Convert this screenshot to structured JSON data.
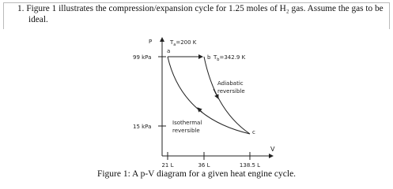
{
  "problem": {
    "number": "1.",
    "text": "Figure 1 illustrates the compression/expansion cycle for 1.25 moles of H₂ gas. Assume the gas to be ideal."
  },
  "figure": {
    "axis_labels": {
      "p": "P",
      "v": "V"
    },
    "y_ticks": [
      "99 kPa",
      "15 kPa"
    ],
    "x_ticks": [
      "21 L",
      "36 L",
      "138.5 L"
    ],
    "points": {
      "a": "a",
      "b": "b",
      "c": "c"
    },
    "temperatures": [
      {
        "symbol": "T",
        "sub": "a",
        "rest": "=200 K"
      },
      {
        "symbol": "T",
        "sub": "b",
        "rest": "=342.9 K"
      }
    ],
    "process_labels": {
      "adiabatic": [
        "Adiabatic",
        "reversible"
      ],
      "isothermal": [
        "Isothermal",
        "reversible"
      ]
    },
    "caption": "Figure 1: A p-V diagram for a given heat engine cycle."
  }
}
